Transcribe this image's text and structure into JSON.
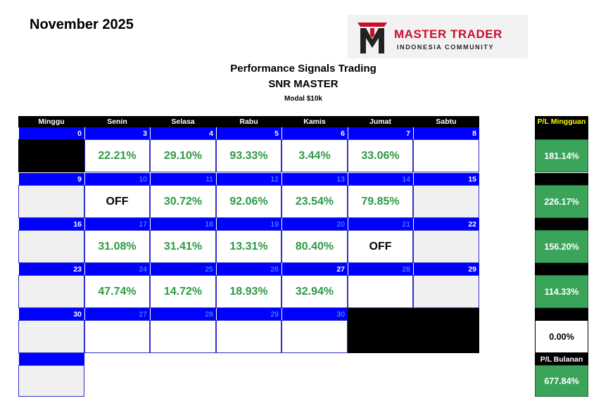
{
  "month_title": "November 2025",
  "logo": {
    "title": "MASTER TRADER",
    "subtitle": "INDONESIA COMMUNITY"
  },
  "header": {
    "line1": "Performance Signals Trading",
    "line2": "SNR MASTER",
    "line3": "Modal $10k"
  },
  "days": [
    "Minggu",
    "Senin",
    "Selasa",
    "Rabu",
    "Kamis",
    "Jumat",
    "Sabtu"
  ],
  "weeks": [
    {
      "nums": [
        "0",
        "3",
        "4",
        "5",
        "6",
        "7",
        "8"
      ],
      "faded": [
        false,
        false,
        false,
        false,
        false,
        false,
        false
      ],
      "values": [
        "",
        "22.21%",
        "29.10%",
        "93.33%",
        "3.44%",
        "33.06%",
        ""
      ],
      "styles": [
        "dark",
        "green",
        "green",
        "green",
        "green",
        "green",
        "white"
      ]
    },
    {
      "nums": [
        "9",
        "10",
        "11",
        "12",
        "13",
        "14",
        "15"
      ],
      "faded": [
        false,
        true,
        true,
        true,
        true,
        true,
        false
      ],
      "values": [
        "",
        "OFF",
        "30.72%",
        "92.06%",
        "23.54%",
        "79.85%",
        ""
      ],
      "styles": [
        "grey",
        "black",
        "green",
        "green",
        "green",
        "green",
        "grey"
      ]
    },
    {
      "nums": [
        "16",
        "17",
        "18",
        "19",
        "20",
        "21",
        "22"
      ],
      "faded": [
        false,
        true,
        true,
        true,
        true,
        true,
        false
      ],
      "values": [
        "",
        "31.08%",
        "31.41%",
        "13.31%",
        "80.40%",
        "OFF",
        ""
      ],
      "styles": [
        "grey",
        "green",
        "green",
        "green",
        "green",
        "black",
        "grey"
      ]
    },
    {
      "nums": [
        "23",
        "24",
        "25",
        "26",
        "27",
        "28",
        "29"
      ],
      "faded": [
        false,
        true,
        true,
        true,
        false,
        true,
        false
      ],
      "values": [
        "",
        "47.74%",
        "14.72%",
        "18.93%",
        "32.94%",
        "",
        ""
      ],
      "styles": [
        "grey",
        "green",
        "green",
        "green",
        "green",
        "white",
        "grey"
      ]
    },
    {
      "nums": [
        "30",
        "27",
        "28",
        "29",
        "30",
        "",
        ""
      ],
      "faded": [
        false,
        true,
        true,
        true,
        true,
        false,
        false
      ],
      "values": [
        "",
        "",
        "",
        "",
        "",
        "",
        ""
      ],
      "styles": [
        "grey",
        "white",
        "white",
        "white",
        "white",
        "dark",
        "dark"
      ]
    }
  ],
  "pl_weekly": {
    "label": "P/L Mingguan",
    "values": [
      "181.14%",
      "226.17%",
      "156.20%",
      "114.33%",
      "0.00%"
    ]
  },
  "pl_monthly": {
    "label": "P/L Bulanan",
    "value": "677.84%"
  }
}
